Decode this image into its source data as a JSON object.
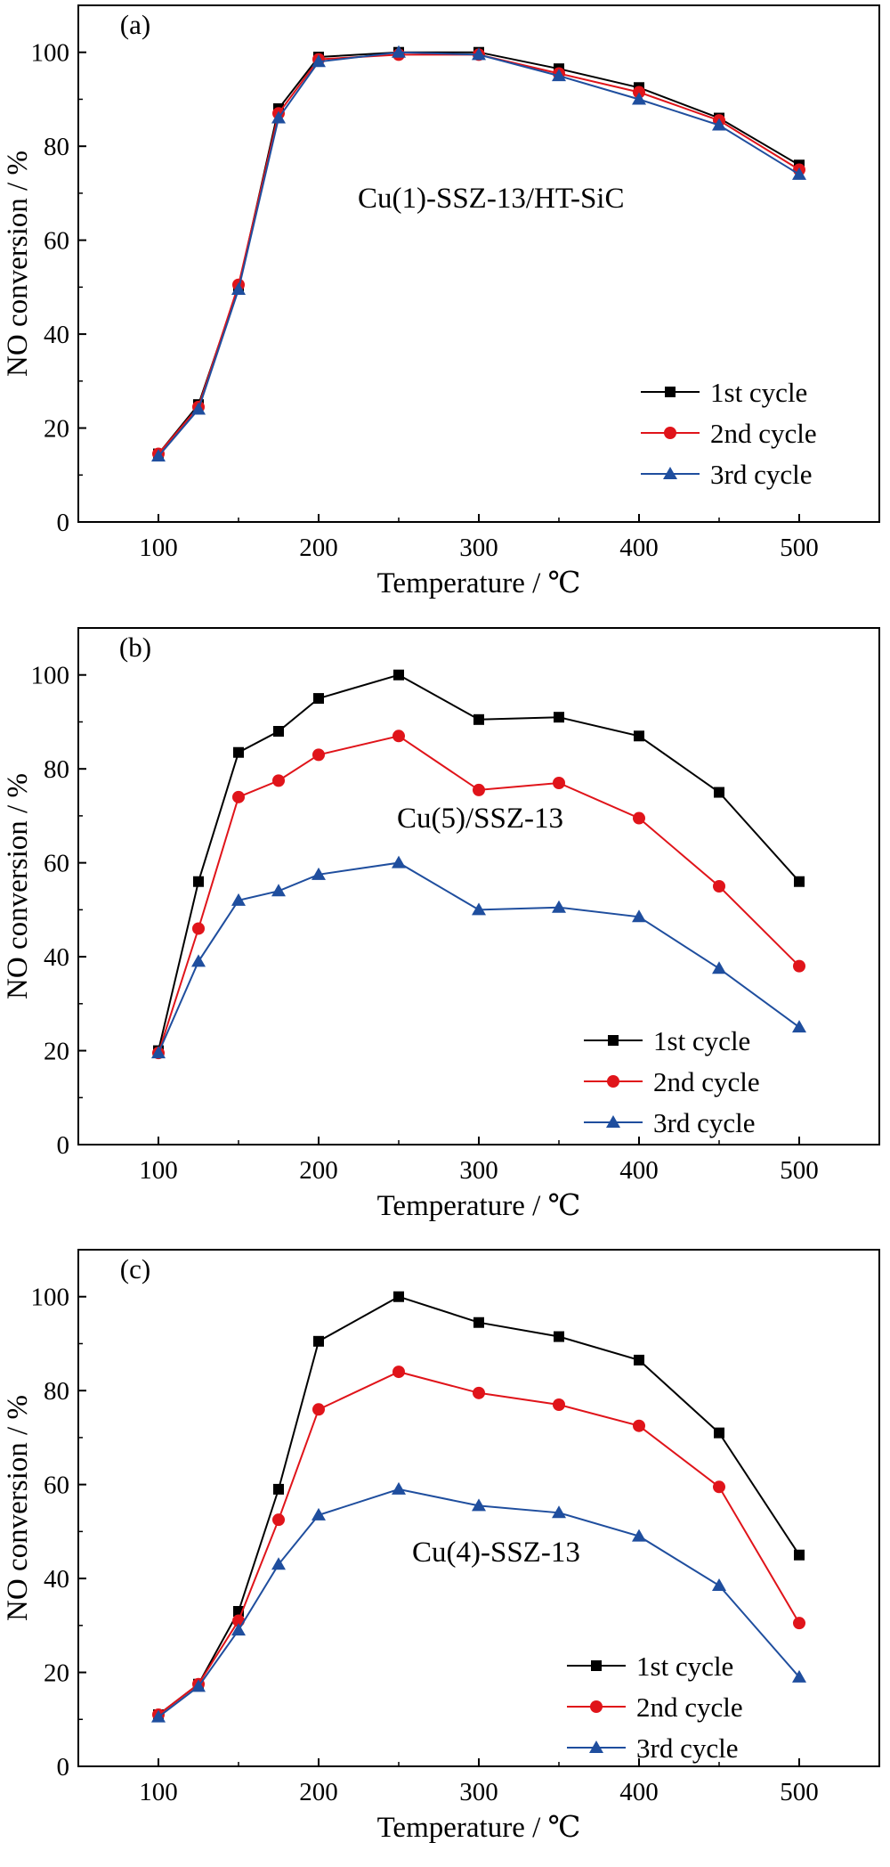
{
  "colors": {
    "series_1": "#000000",
    "series_2": "#e0141a",
    "series_3": "#1f4e9e",
    "axis": "#000000",
    "background": "#ffffff"
  },
  "chart_data": [
    {
      "type": "line",
      "panel_label": "(a)",
      "annotation": "Cu(1)-SSZ-13/HT-SiC",
      "xlabel": "Temperature / ℃",
      "ylabel": "NO conversion / %",
      "xlim": [
        50,
        550
      ],
      "ylim": [
        0,
        110
      ],
      "xticks": [
        100,
        200,
        300,
        400,
        500
      ],
      "yticks": [
        0,
        20,
        40,
        60,
        80,
        100
      ],
      "grid": false,
      "legend_position": "bottom-right",
      "x": [
        100,
        125,
        150,
        175,
        200,
        250,
        300,
        350,
        400,
        450,
        500
      ],
      "series": [
        {
          "name": "1st cycle",
          "marker": "square",
          "values": [
            14.5,
            25,
            50,
            88,
            99,
            100,
            100,
            96.5,
            92.5,
            86,
            76
          ]
        },
        {
          "name": "2nd cycle",
          "marker": "circle",
          "values": [
            14.5,
            24.5,
            50.5,
            87,
            98.5,
            99.5,
            99.5,
            95.5,
            91.5,
            85.5,
            75
          ]
        },
        {
          "name": "3rd cycle",
          "marker": "triangle",
          "values": [
            14,
            24,
            49.5,
            86,
            98,
            100,
            99.5,
            95,
            90,
            84.5,
            74
          ]
        }
      ]
    },
    {
      "type": "line",
      "panel_label": "(b)",
      "annotation": "Cu(5)/SSZ-13",
      "xlabel": "Temperature / ℃",
      "ylabel": "NO conversion / %",
      "xlim": [
        50,
        550
      ],
      "ylim": [
        0,
        110
      ],
      "xticks": [
        100,
        200,
        300,
        400,
        500
      ],
      "yticks": [
        0,
        20,
        40,
        60,
        80,
        100
      ],
      "grid": false,
      "legend_position": "bottom-right",
      "x": [
        100,
        125,
        150,
        175,
        200,
        250,
        300,
        350,
        400,
        450,
        500
      ],
      "series": [
        {
          "name": "1st cycle",
          "marker": "square",
          "values": [
            20,
            56,
            83.5,
            88,
            95,
            100,
            90.5,
            91,
            87,
            75,
            56
          ]
        },
        {
          "name": "2nd cycle",
          "marker": "circle",
          "values": [
            19.5,
            46,
            74,
            77.5,
            83,
            87,
            75.5,
            77,
            69.5,
            55,
            38
          ]
        },
        {
          "name": "3rd cycle",
          "marker": "triangle",
          "values": [
            19.5,
            39,
            52,
            54,
            57.5,
            60,
            50,
            50.5,
            48.5,
            37.5,
            25
          ]
        }
      ]
    },
    {
      "type": "line",
      "panel_label": "(c)",
      "annotation": "Cu(4)-SSZ-13",
      "xlabel": "Temperature / ℃",
      "ylabel": "NO conversion / %",
      "xlim": [
        50,
        550
      ],
      "ylim": [
        0,
        110
      ],
      "xticks": [
        100,
        200,
        300,
        400,
        500
      ],
      "yticks": [
        0,
        20,
        40,
        60,
        80,
        100
      ],
      "grid": false,
      "legend_position": "bottom-right",
      "x": [
        100,
        125,
        150,
        175,
        200,
        250,
        300,
        350,
        400,
        450,
        500
      ],
      "series": [
        {
          "name": "1st cycle",
          "marker": "square",
          "values": [
            11,
            17.5,
            33,
            59,
            90.5,
            100,
            94.5,
            91.5,
            86.5,
            71,
            45
          ]
        },
        {
          "name": "2nd cycle",
          "marker": "circle",
          "values": [
            11,
            17.5,
            31,
            52.5,
            76,
            84,
            79.5,
            77,
            72.5,
            59.5,
            30.5
          ]
        },
        {
          "name": "3rd cycle",
          "marker": "triangle",
          "values": [
            10.5,
            17,
            29,
            43,
            53.5,
            59,
            55.5,
            54,
            49,
            38.5,
            19
          ]
        }
      ]
    }
  ]
}
